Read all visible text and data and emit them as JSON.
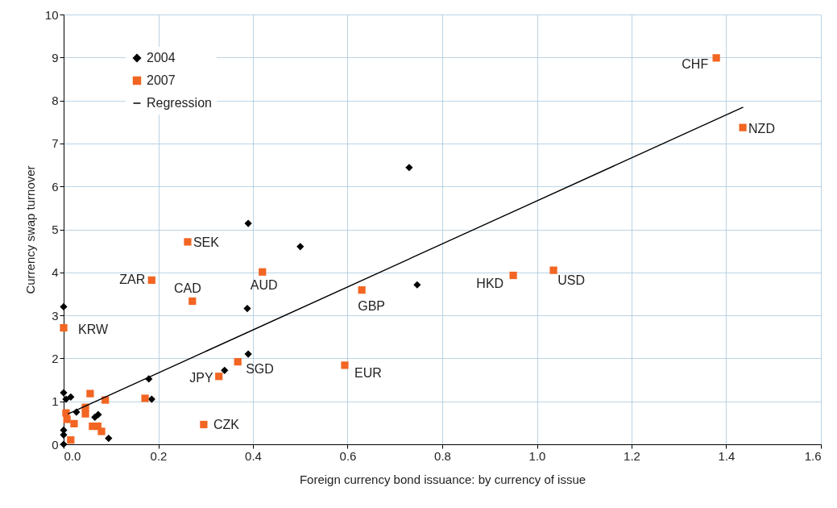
{
  "chart_data": {
    "type": "scatter",
    "xlabel": "Foreign currency bond issuance: by currency of issue",
    "ylabel": "Currency swap turnover",
    "xlim": [
      0,
      1.6
    ],
    "xticks": [
      {
        "value": 0,
        "label": "0.0"
      },
      0.2,
      0.4,
      0.6,
      0.8,
      {
        "value": 1,
        "label": "1.0"
      },
      1.2,
      1.4,
      1.6
    ],
    "ylim": [
      0,
      10
    ],
    "yticks": [
      0,
      1,
      2,
      3,
      4,
      5,
      6,
      7,
      8,
      9,
      10
    ],
    "grid": true,
    "legend": "top left",
    "series": [
      {
        "name": "2004",
        "marker": "diamond",
        "color": "#000000",
        "x": [
          0,
          0.39,
          0.5,
          0.73,
          0.747,
          0.388,
          0.39,
          0.34,
          0.18,
          0.186,
          0.095,
          0,
          0.005,
          0.015,
          0,
          0,
          0,
          0.027,
          0.073,
          0.066
        ],
        "values": [
          3.2,
          5.14,
          4.6,
          6.44,
          3.71,
          3.16,
          2.1,
          1.72,
          1.52,
          1.05,
          0.14,
          1.2,
          1.05,
          1.1,
          0.33,
          0.22,
          0,
          0.75,
          0.69,
          0.63
        ]
      },
      {
        "name": "2007",
        "marker": "square",
        "color": "#f26522",
        "x": [
          1.379,
          1.435,
          0.262,
          0.186,
          0.272,
          0.42,
          0.63,
          0.95,
          1.035,
          0.594,
          0,
          0.328,
          0.368,
          0.296,
          0.172,
          0.088,
          0.056,
          0.046,
          0.046,
          0.005,
          0.007,
          0.022,
          0.061,
          0.072,
          0.08,
          0.015
        ],
        "values": [
          8.99,
          7.37,
          4.71,
          3.82,
          3.33,
          4.01,
          3.59,
          3.93,
          4.05,
          1.84,
          2.71,
          1.58,
          1.92,
          0.46,
          1.07,
          1.03,
          1.18,
          0.86,
          0.71,
          0.73,
          0.58,
          0.48,
          0.42,
          0.42,
          0.3,
          0.1
        ]
      },
      {
        "name": "Regression",
        "type": "line",
        "color": "#000000",
        "x": [
          0.01,
          1.435
        ],
        "values": [
          0.71,
          7.84
        ]
      }
    ],
    "annotations": [
      {
        "text": "CHF",
        "x": 1.379,
        "y": 8.99
      },
      {
        "text": "NZD",
        "x": 1.435,
        "y": 7.37
      },
      {
        "text": "SEK",
        "x": 0.262,
        "y": 4.71
      },
      {
        "text": "ZAR",
        "x": 0.186,
        "y": 3.82
      },
      {
        "text": "CAD",
        "x": 0.272,
        "y": 3.33
      },
      {
        "text": "AUD",
        "x": 0.42,
        "y": 4.01
      },
      {
        "text": "GBP",
        "x": 0.63,
        "y": 3.59
      },
      {
        "text": "HKD",
        "x": 0.95,
        "y": 3.93
      },
      {
        "text": "USD",
        "x": 1.035,
        "y": 4.05
      },
      {
        "text": "EUR",
        "x": 0.594,
        "y": 1.84
      },
      {
        "text": "KRW",
        "x": 0,
        "y": 2.71
      },
      {
        "text": "JPY",
        "x": 0.328,
        "y": 1.58
      },
      {
        "text": "SGD",
        "x": 0.368,
        "y": 1.92
      },
      {
        "text": "CZK",
        "x": 0.296,
        "y": 0.46
      }
    ]
  }
}
